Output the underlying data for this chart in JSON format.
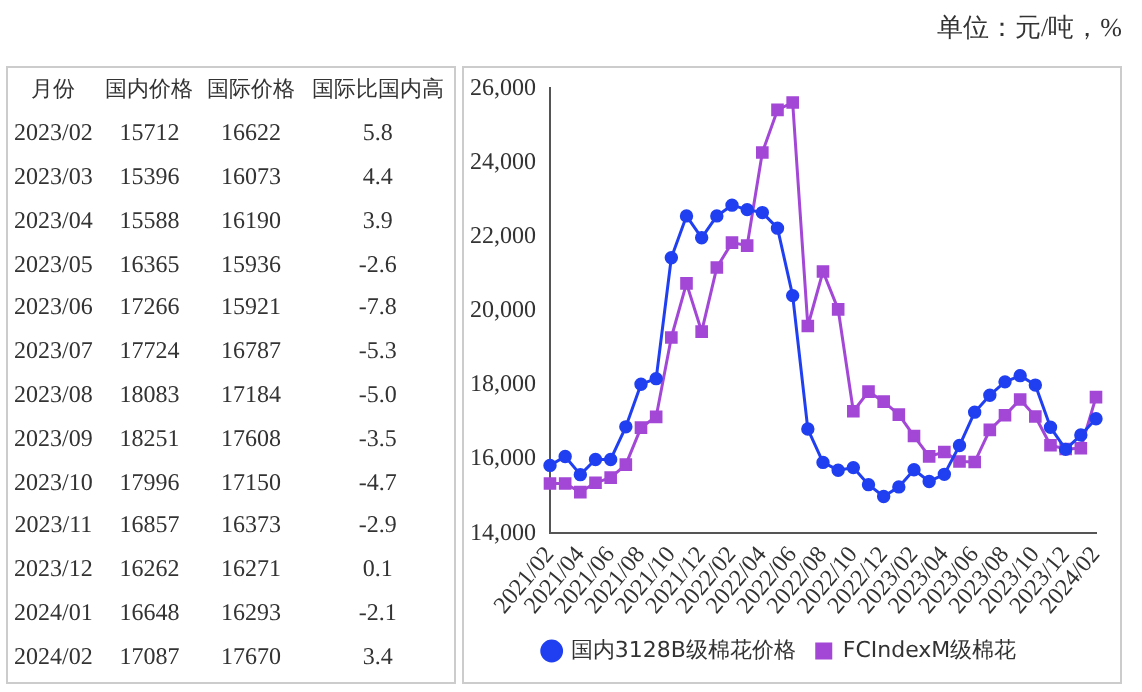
{
  "chart_data": [
    {
      "type": "other",
      "xlabel": "月份",
      "categories": [
        "2023/02",
        "2023/03",
        "2023/04",
        "2023/05",
        "2023/06",
        "2023/07",
        "2023/08",
        "2023/09",
        "2023/10",
        "2023/11",
        "2023/12",
        "2024/01",
        "2024/02"
      ],
      "data_labels": true,
      "series": [
        {
          "name": "国内价格",
          "values": [
            15712,
            15396,
            15588,
            16365,
            17266,
            17724,
            18083,
            18251,
            17996,
            16857,
            16262,
            16648,
            17087
          ]
        },
        {
          "name": "国际价格",
          "values": [
            16622,
            16073,
            16190,
            15936,
            15921,
            16787,
            17184,
            17608,
            17150,
            16373,
            16271,
            16293,
            17670
          ]
        },
        {
          "name": "国际比国内高",
          "values": [
            5.8,
            4.4,
            3.9,
            -2.6,
            -7.8,
            -5.3,
            -5.0,
            -3.5,
            -4.7,
            -2.9,
            0.1,
            -2.1,
            3.4
          ],
          "value_labels": [
            "5.8",
            "4.4",
            "3.9",
            "-2.6",
            "-7.8",
            "-5.3",
            "-5.0",
            "-3.5",
            "-4.7",
            "-2.9",
            "0.1",
            "-2.1",
            "3.4"
          ]
        }
      ]
    },
    {
      "type": "line",
      "annotations": [
        "单位：元/吨，%"
      ],
      "legend": "bottom",
      "grid": false,
      "categories": [
        "2021/02",
        null,
        "2021/04",
        null,
        "2021/06",
        null,
        "2021/08",
        null,
        "2021/10",
        null,
        "2021/12",
        null,
        "2022/02",
        null,
        "2022/04",
        null,
        "2022/06",
        null,
        "2022/08",
        null,
        "2022/10",
        null,
        "2022/12",
        null,
        "2023/02",
        null,
        "2023/04",
        null,
        "2023/06",
        null,
        "2023/08",
        null,
        "2023/10",
        null,
        "2023/12",
        null,
        "2024/02"
      ],
      "ylim": [
        14000,
        26000
      ],
      "yticks": [
        {
          "value": 14000,
          "label": "14,000"
        },
        {
          "value": 16000,
          "label": "16,000"
        },
        {
          "value": 18000,
          "label": "18,000"
        },
        {
          "value": 20000,
          "label": "20,000"
        },
        {
          "value": 22000,
          "label": "22,000"
        },
        {
          "value": 24000,
          "label": "24,000"
        },
        {
          "value": 26000,
          "label": "26,000"
        }
      ],
      "series": [
        {
          "name": "国内3128B级棉花价格",
          "color": "#1f3ff0",
          "marker": "circle",
          "values": [
            15830,
            16070,
            15580,
            15990,
            15990,
            16870,
            18020,
            18170,
            21430,
            22560,
            21970,
            22560,
            22850,
            22730,
            22650,
            22230,
            20410,
            16810,
            15910,
            15700,
            15770,
            15310,
            14990,
            15250,
            15712,
            15396,
            15588,
            16365,
            17266,
            17724,
            18083,
            18251,
            17996,
            16857,
            16262,
            16648,
            17087
          ]
        },
        {
          "name": "FCIndexM级棉花",
          "color": "#a347d6",
          "marker": "square",
          "values": [
            15340,
            15340,
            15110,
            15360,
            15500,
            15850,
            16850,
            17140,
            19280,
            20740,
            19440,
            21170,
            21840,
            21760,
            24270,
            25420,
            25620,
            19590,
            21060,
            20040,
            17290,
            17820,
            17550,
            17200,
            16622,
            16073,
            16190,
            15936,
            15921,
            16787,
            17184,
            17608,
            17150,
            16373,
            16271,
            16293,
            17670
          ]
        }
      ]
    }
  ]
}
